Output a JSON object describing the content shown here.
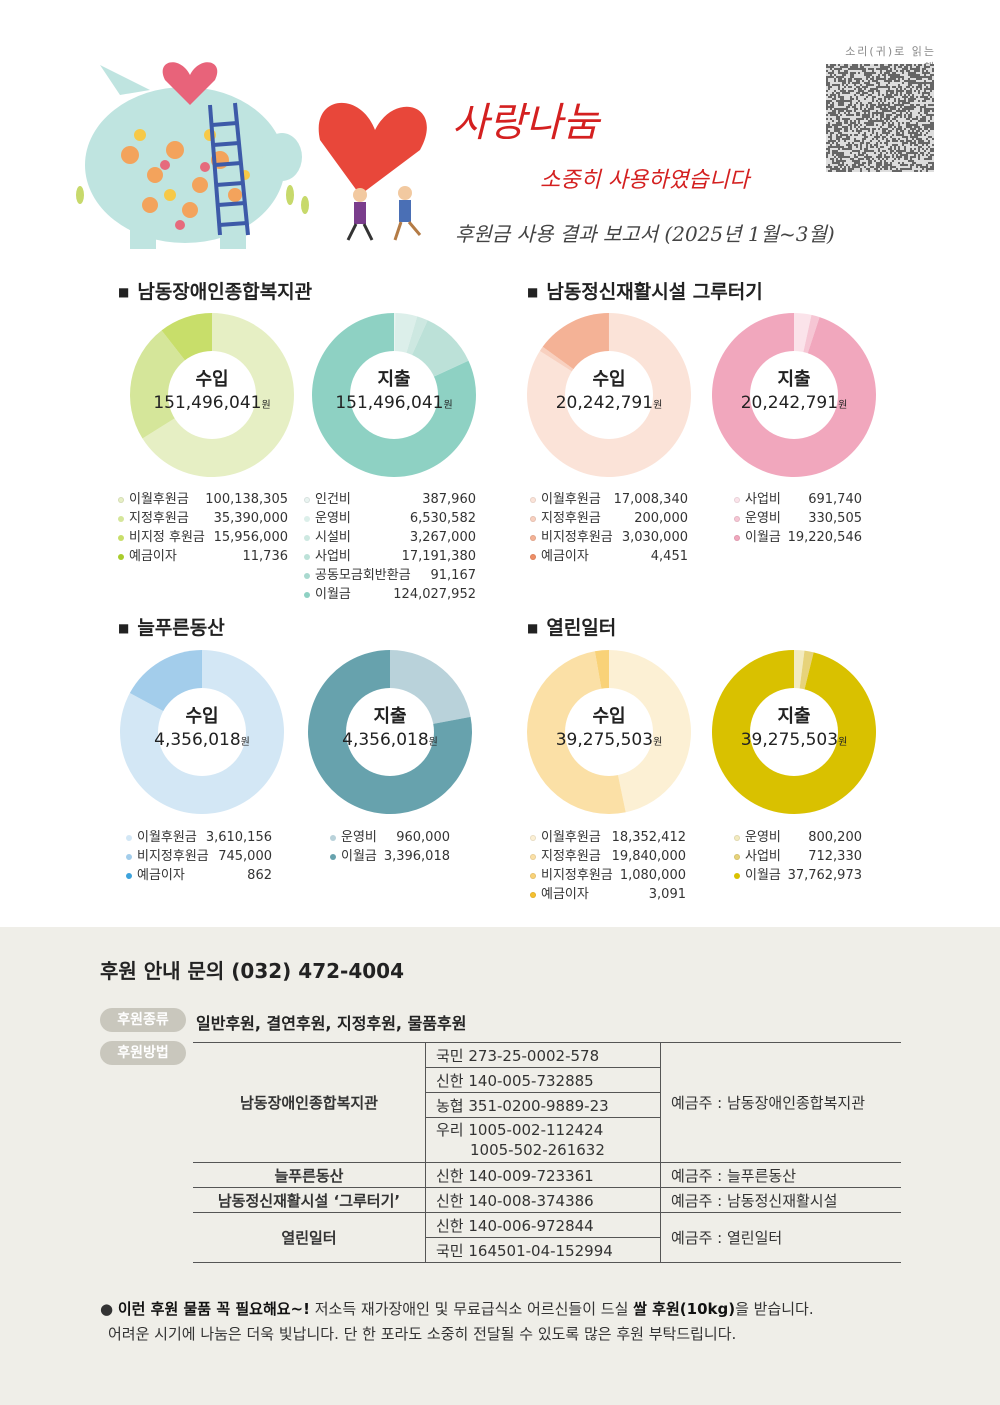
{
  "header": {
    "title": "사랑나눔",
    "subtitle": "소중히 사용하였습니다",
    "report": "후원금 사용 결과 보고서 (2025년 1월~3월)",
    "qr_label": "소리(귀)로 읽는 책"
  },
  "sections": [
    {
      "title": "남동장애인종합복지관",
      "income": {
        "label": "수입",
        "total": "151,496,041",
        "unit": "원",
        "items": [
          {
            "label": "이월후원금",
            "value": "100,138,305",
            "amount": 100138305,
            "color": "#e6efc4"
          },
          {
            "label": "지정후원금",
            "value": "35,390,000",
            "amount": 35390000,
            "color": "#d5e69a"
          },
          {
            "label": "비지정 후원금",
            "value": "15,956,000",
            "amount": 15956000,
            "color": "#c8de6a"
          },
          {
            "label": "예금이자",
            "value": "11,736",
            "amount": 11736,
            "color": "#a9cc2c"
          }
        ]
      },
      "expense": {
        "label": "지출",
        "total": "151,496,041",
        "unit": "원",
        "items": [
          {
            "label": "인건비",
            "value": "387,960",
            "amount": 387960,
            "color": "#e9f4f1"
          },
          {
            "label": "운영비",
            "value": "6,530,582",
            "amount": 6530582,
            "color": "#dcefea"
          },
          {
            "label": "시설비",
            "value": "3,267,000",
            "amount": 3267000,
            "color": "#cde8e1"
          },
          {
            "label": "사업비",
            "value": "17,191,380",
            "amount": 17191380,
            "color": "#bce1d8"
          },
          {
            "label": "공동모금회반환금",
            "value": "91,167",
            "amount": 91167,
            "color": "#a9d9cf"
          },
          {
            "label": "이월금",
            "value": "124,027,952",
            "amount": 124027952,
            "color": "#8ed1c3"
          }
        ]
      }
    },
    {
      "title": "남동정신재활시설 그루터기",
      "income": {
        "label": "수입",
        "total": "20,242,791",
        "unit": "원",
        "items": [
          {
            "label": "이월후원금",
            "value": "17,008,340",
            "amount": 17008340,
            "color": "#fbe3d8"
          },
          {
            "label": "지정후원금",
            "value": "200,000",
            "amount": 200000,
            "color": "#f8d0bf"
          },
          {
            "label": "비지정후원금",
            "value": "3,030,000",
            "amount": 3030000,
            "color": "#f4b296"
          },
          {
            "label": "예금이자",
            "value": "4,451",
            "amount": 4451,
            "color": "#ee8e66"
          }
        ]
      },
      "expense": {
        "label": "지출",
        "total": "20,242,791",
        "unit": "원",
        "items": [
          {
            "label": "사업비",
            "value": "691,740",
            "amount": 691740,
            "color": "#fbe3ea"
          },
          {
            "label": "운영비",
            "value": "330,505",
            "amount": 330505,
            "color": "#f6c6d4"
          },
          {
            "label": "이월금",
            "value": "19,220,546",
            "amount": 19220546,
            "color": "#f1a7bd"
          }
        ]
      }
    },
    {
      "title": "늘푸른동산",
      "income": {
        "label": "수입",
        "total": "4,356,018",
        "unit": "원",
        "items": [
          {
            "label": "이월후원금",
            "value": "3,610,156",
            "amount": 3610156,
            "color": "#d3e7f5"
          },
          {
            "label": "비지정후원금",
            "value": "745,000",
            "amount": 745000,
            "color": "#a3cdeb"
          },
          {
            "label": "예금이자",
            "value": "862",
            "amount": 862,
            "color": "#3da3dc"
          }
        ]
      },
      "expense": {
        "label": "지출",
        "total": "4,356,018",
        "unit": "원",
        "items": [
          {
            "label": "운영비",
            "value": "960,000",
            "amount": 960000,
            "color": "#b9d2da"
          },
          {
            "label": "이월금",
            "value": "3,396,018",
            "amount": 3396018,
            "color": "#67a2ad"
          }
        ]
      }
    },
    {
      "title": "열린일터",
      "income": {
        "label": "수입",
        "total": "39,275,503",
        "unit": "원",
        "items": [
          {
            "label": "이월후원금",
            "value": "18,352,412",
            "amount": 18352412,
            "color": "#fcf0d4"
          },
          {
            "label": "지정후원금",
            "value": "19,840,000",
            "amount": 19840000,
            "color": "#fbe0a6"
          },
          {
            "label": "비지정후원금",
            "value": "1,080,000",
            "amount": 1080000,
            "color": "#f9d278"
          },
          {
            "label": "예금이자",
            "value": "3,091",
            "amount": 3091,
            "color": "#f5c030"
          }
        ]
      },
      "expense": {
        "label": "지출",
        "total": "39,275,503",
        "unit": "원",
        "items": [
          {
            "label": "운영비",
            "value": "800,200",
            "amount": 800200,
            "color": "#f3ebbf"
          },
          {
            "label": "사업비",
            "value": "712,330",
            "amount": 712330,
            "color": "#e7d37a"
          },
          {
            "label": "이월금",
            "value": "37,762,973",
            "amount": 37762973,
            "color": "#d9c100"
          }
        ]
      }
    }
  ],
  "support": {
    "contact": "후원 안내 문의 (032) 472-4004",
    "type_tag": "후원종류",
    "types": "일반후원, 결연후원, 지정후원, 물품후원",
    "method_tag": "후원방법",
    "rows": [
      {
        "org": "남동장애인종합복지관",
        "accounts": [
          "국민 273-25-0002-578",
          "신한 140-005-732885",
          "농협 351-0200-9889-23",
          "우리 1005-002-112424",
          "1005-502-261632"
        ],
        "owner": "예금주 : 남동장애인종합복지관"
      },
      {
        "org": "늘푸른동산",
        "accounts": [
          "신한 140-009-723361"
        ],
        "owner": "예금주 : 늘푸른동산"
      },
      {
        "org": "남동정신재활시설 ‘그루터기’",
        "accounts": [
          "신한 140-008-374386"
        ],
        "owner": "예금주 : 남동정신재활시설"
      },
      {
        "org": "열린일터",
        "accounts": [
          "신한 140-006-972844",
          "국민 164501-04-152994"
        ],
        "owner": "예금주 : 열린일터"
      }
    ],
    "note_bold": "이런 후원 물품 꼭 필요해요~!",
    "note_text1": " 저소득 재가장애인 및 무료급식소 어르신들이 드실 ",
    "note_bold2": "쌀 후원(10kg)",
    "note_text2": "을 받습니다.",
    "note_line2": "어려운 시기에 나눔은 더욱 빛납니다. 단 한 포라도 소중히 전달될 수 있도록 많은 후원 부탁드립니다."
  },
  "colors": {
    "title_red": "#d42020",
    "panel_bg": "#efeee8",
    "tag_bg": "#c9c7bd"
  }
}
